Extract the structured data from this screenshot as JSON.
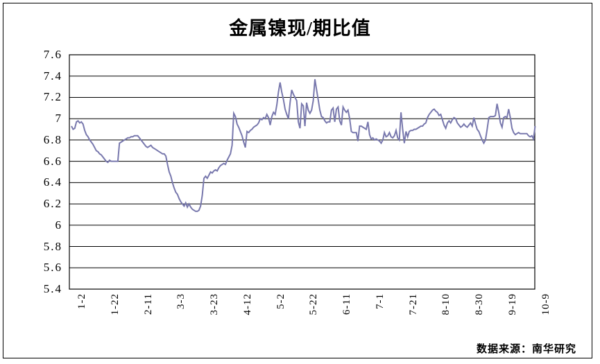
{
  "title": "金属镍现/期比值",
  "source_note": "数据来源：南华研究",
  "colors": {
    "line": "#7878ad",
    "grid": "#000000",
    "background": "#ffffff",
    "text": "#000000"
  },
  "chart_data": {
    "type": "line",
    "title": "金属镍现/期比值",
    "xlabel": "",
    "ylabel": "",
    "grid": "horizontal",
    "legend": "none",
    "ylim": [
      5.4,
      7.6
    ],
    "y_tick_step": 0.2,
    "y_tick_labels": [
      "7.6",
      "7.4",
      "7.2",
      "7",
      "6.8",
      "6.6",
      "6.4",
      "6.2",
      "6",
      "5.8",
      "5.6",
      "5.4"
    ],
    "x_tick_labels": [
      "1-2",
      "1-22",
      "2-11",
      "3-3",
      "3-23",
      "4-12",
      "5-2",
      "5-22",
      "6-11",
      "7-1",
      "7-21",
      "8-10",
      "8-30",
      "9-19",
      "10-9"
    ],
    "x_tick_days": [
      0,
      20,
      40,
      60,
      80,
      100,
      120,
      140,
      160,
      180,
      200,
      220,
      240,
      260,
      280
    ],
    "series": [
      {
        "name": "现/期比值",
        "points": [
          [
            0,
            6.93
          ],
          [
            1,
            6.9
          ],
          [
            2,
            6.91
          ],
          [
            3,
            6.97
          ],
          [
            4,
            6.98
          ],
          [
            5,
            6.96
          ],
          [
            6,
            6.97
          ],
          [
            7,
            6.95
          ],
          [
            8,
            6.89
          ],
          [
            9,
            6.85
          ],
          [
            10,
            6.83
          ],
          [
            11,
            6.8
          ],
          [
            12,
            6.78
          ],
          [
            13,
            6.76
          ],
          [
            14,
            6.73
          ],
          [
            15,
            6.7
          ],
          [
            16,
            6.69
          ],
          [
            17,
            6.67
          ],
          [
            18,
            6.66
          ],
          [
            19,
            6.64
          ],
          [
            20,
            6.62
          ],
          [
            21,
            6.6
          ],
          [
            22,
            6.59
          ],
          [
            23,
            6.61
          ],
          [
            24,
            6.6
          ],
          [
            25,
            6.6
          ],
          [
            26,
            6.6
          ],
          [
            27,
            6.6
          ],
          [
            28,
            6.6
          ],
          [
            29,
            6.77
          ],
          [
            30,
            6.78
          ],
          [
            31,
            6.79
          ],
          [
            32,
            6.8
          ],
          [
            33,
            6.81
          ],
          [
            34,
            6.82
          ],
          [
            35,
            6.82
          ],
          [
            36,
            6.83
          ],
          [
            37,
            6.83
          ],
          [
            38,
            6.84
          ],
          [
            39,
            6.84
          ],
          [
            40,
            6.84
          ],
          [
            41,
            6.82
          ],
          [
            42,
            6.8
          ],
          [
            43,
            6.78
          ],
          [
            44,
            6.76
          ],
          [
            45,
            6.74
          ],
          [
            46,
            6.73
          ],
          [
            47,
            6.74
          ],
          [
            48,
            6.75
          ],
          [
            49,
            6.73
          ],
          [
            50,
            6.72
          ],
          [
            51,
            6.71
          ],
          [
            52,
            6.7
          ],
          [
            53,
            6.69
          ],
          [
            54,
            6.68
          ],
          [
            55,
            6.67
          ],
          [
            56,
            6.67
          ],
          [
            57,
            6.65
          ],
          [
            58,
            6.57
          ],
          [
            59,
            6.5
          ],
          [
            60,
            6.46
          ],
          [
            61,
            6.4
          ],
          [
            62,
            6.35
          ],
          [
            63,
            6.31
          ],
          [
            64,
            6.29
          ],
          [
            65,
            6.25
          ],
          [
            66,
            6.22
          ],
          [
            67,
            6.2
          ],
          [
            68,
            6.18
          ],
          [
            69,
            6.21
          ],
          [
            70,
            6.17
          ],
          [
            71,
            6.2
          ],
          [
            72,
            6.17
          ],
          [
            73,
            6.15
          ],
          [
            74,
            6.14
          ],
          [
            75,
            6.13
          ],
          [
            76,
            6.13
          ],
          [
            77,
            6.14
          ],
          [
            78,
            6.18
          ],
          [
            79,
            6.28
          ],
          [
            80,
            6.44
          ],
          [
            81,
            6.46
          ],
          [
            82,
            6.44
          ],
          [
            83,
            6.47
          ],
          [
            84,
            6.5
          ],
          [
            85,
            6.49
          ],
          [
            86,
            6.51
          ],
          [
            87,
            6.52
          ],
          [
            88,
            6.51
          ],
          [
            89,
            6.54
          ],
          [
            90,
            6.56
          ],
          [
            91,
            6.57
          ],
          [
            92,
            6.58
          ],
          [
            93,
            6.57
          ],
          [
            94,
            6.61
          ],
          [
            95,
            6.64
          ],
          [
            96,
            6.67
          ],
          [
            97,
            6.75
          ],
          [
            98,
            7.05
          ],
          [
            99,
            7.02
          ],
          [
            100,
            6.95
          ],
          [
            101,
            6.92
          ],
          [
            102,
            6.88
          ],
          [
            103,
            6.84
          ],
          [
            104,
            6.78
          ],
          [
            105,
            6.73
          ],
          [
            106,
            6.88
          ],
          [
            107,
            6.87
          ],
          [
            108,
            6.89
          ],
          [
            109,
            6.9
          ],
          [
            110,
            6.92
          ],
          [
            111,
            6.93
          ],
          [
            112,
            6.94
          ],
          [
            113,
            6.96
          ],
          [
            114,
            7.0
          ],
          [
            115,
            6.99
          ],
          [
            116,
            7.01
          ],
          [
            117,
            7.0
          ],
          [
            118,
            7.04
          ],
          [
            119,
            7.01
          ],
          [
            120,
            6.94
          ],
          [
            121,
            7.02
          ],
          [
            122,
            7.06
          ],
          [
            123,
            7.04
          ],
          [
            124,
            7.13
          ],
          [
            125,
            7.25
          ],
          [
            126,
            7.34
          ],
          [
            127,
            7.25
          ],
          [
            128,
            7.18
          ],
          [
            129,
            7.09
          ],
          [
            130,
            7.04
          ],
          [
            131,
            7.0
          ],
          [
            132,
            7.15
          ],
          [
            133,
            7.27
          ],
          [
            134,
            7.23
          ],
          [
            135,
            7.2
          ],
          [
            136,
            7.17
          ],
          [
            137,
            6.97
          ],
          [
            138,
            6.91
          ],
          [
            139,
            7.14
          ],
          [
            140,
            7.12
          ],
          [
            141,
            6.93
          ],
          [
            142,
            7.15
          ],
          [
            143,
            7.08
          ],
          [
            144,
            7.05
          ],
          [
            145,
            7.08
          ],
          [
            146,
            7.17
          ],
          [
            147,
            7.37
          ],
          [
            148,
            7.27
          ],
          [
            149,
            7.18
          ],
          [
            150,
            7.08
          ],
          [
            151,
            7.02
          ],
          [
            152,
            7.01
          ],
          [
            153,
            6.98
          ],
          [
            154,
            6.96
          ],
          [
            155,
            6.97
          ],
          [
            156,
            6.97
          ],
          [
            157,
            7.08
          ],
          [
            158,
            7.1
          ],
          [
            159,
            6.97
          ],
          [
            160,
            7.09
          ],
          [
            161,
            7.11
          ],
          [
            162,
            6.98
          ],
          [
            163,
            6.94
          ],
          [
            164,
            7.11
          ],
          [
            165,
            7.08
          ],
          [
            166,
            7.06
          ],
          [
            167,
            7.08
          ],
          [
            168,
            7.0
          ],
          [
            169,
            6.88
          ],
          [
            170,
            6.87
          ],
          [
            171,
            6.87
          ],
          [
            172,
            6.87
          ],
          [
            173,
            6.79
          ],
          [
            174,
            6.93
          ],
          [
            175,
            6.93
          ],
          [
            176,
            6.92
          ],
          [
            177,
            6.91
          ],
          [
            178,
            6.9
          ],
          [
            179,
            6.97
          ],
          [
            180,
            6.85
          ],
          [
            181,
            6.81
          ],
          [
            182,
            6.82
          ],
          [
            183,
            6.8
          ],
          [
            184,
            6.81
          ],
          [
            185,
            6.8
          ],
          [
            186,
            6.79
          ],
          [
            187,
            6.77
          ],
          [
            188,
            6.8
          ],
          [
            189,
            6.87
          ],
          [
            190,
            6.83
          ],
          [
            191,
            6.84
          ],
          [
            192,
            6.87
          ],
          [
            193,
            6.83
          ],
          [
            194,
            6.82
          ],
          [
            195,
            6.84
          ],
          [
            196,
            6.89
          ],
          [
            197,
            6.82
          ],
          [
            198,
            6.8
          ],
          [
            199,
            7.06
          ],
          [
            200,
            6.9
          ],
          [
            201,
            6.77
          ],
          [
            202,
            6.88
          ],
          [
            203,
            6.83
          ],
          [
            204,
            6.88
          ],
          [
            205,
            6.89
          ],
          [
            206,
            6.89
          ],
          [
            207,
            6.9
          ],
          [
            208,
            6.9
          ],
          [
            209,
            6.91
          ],
          [
            210,
            6.92
          ],
          [
            211,
            6.93
          ],
          [
            212,
            6.93
          ],
          [
            213,
            6.95
          ],
          [
            214,
            6.96
          ],
          [
            215,
            7.01
          ],
          [
            216,
            7.04
          ],
          [
            217,
            7.06
          ],
          [
            218,
            7.08
          ],
          [
            219,
            7.09
          ],
          [
            220,
            7.07
          ],
          [
            221,
            7.06
          ],
          [
            222,
            7.03
          ],
          [
            223,
            7.04
          ],
          [
            224,
            6.99
          ],
          [
            225,
            6.94
          ],
          [
            226,
            6.91
          ],
          [
            227,
            6.96
          ],
          [
            228,
            6.98
          ],
          [
            229,
            6.96
          ],
          [
            230,
            6.99
          ],
          [
            231,
            7.01
          ],
          [
            232,
            7.0
          ],
          [
            233,
            6.96
          ],
          [
            234,
            6.94
          ],
          [
            235,
            6.92
          ],
          [
            236,
            6.93
          ],
          [
            237,
            6.95
          ],
          [
            238,
            6.93
          ],
          [
            239,
            6.92
          ],
          [
            240,
            6.94
          ],
          [
            241,
            6.96
          ],
          [
            242,
            6.93
          ],
          [
            243,
            7.01
          ],
          [
            244,
            6.95
          ],
          [
            245,
            6.9
          ],
          [
            246,
            6.88
          ],
          [
            247,
            6.84
          ],
          [
            248,
            6.8
          ],
          [
            249,
            6.77
          ],
          [
            250,
            6.8
          ],
          [
            251,
            6.9
          ],
          [
            252,
            7.01
          ],
          [
            253,
            7.02
          ],
          [
            254,
            7.02
          ],
          [
            255,
            7.02
          ],
          [
            256,
            7.03
          ],
          [
            257,
            7.14
          ],
          [
            258,
            7.06
          ],
          [
            259,
            6.96
          ],
          [
            260,
            6.92
          ],
          [
            261,
            7.01
          ],
          [
            262,
            7.02
          ],
          [
            263,
            7.01
          ],
          [
            264,
            7.09
          ],
          [
            265,
            7.01
          ],
          [
            266,
            6.91
          ],
          [
            267,
            6.87
          ],
          [
            268,
            6.85
          ],
          [
            269,
            6.86
          ],
          [
            270,
            6.87
          ],
          [
            271,
            6.86
          ],
          [
            272,
            6.86
          ],
          [
            273,
            6.86
          ],
          [
            274,
            6.86
          ],
          [
            275,
            6.86
          ],
          [
            276,
            6.84
          ],
          [
            277,
            6.83
          ],
          [
            278,
            6.84
          ],
          [
            279,
            6.81
          ],
          [
            280,
            6.93
          ]
        ]
      }
    ]
  }
}
